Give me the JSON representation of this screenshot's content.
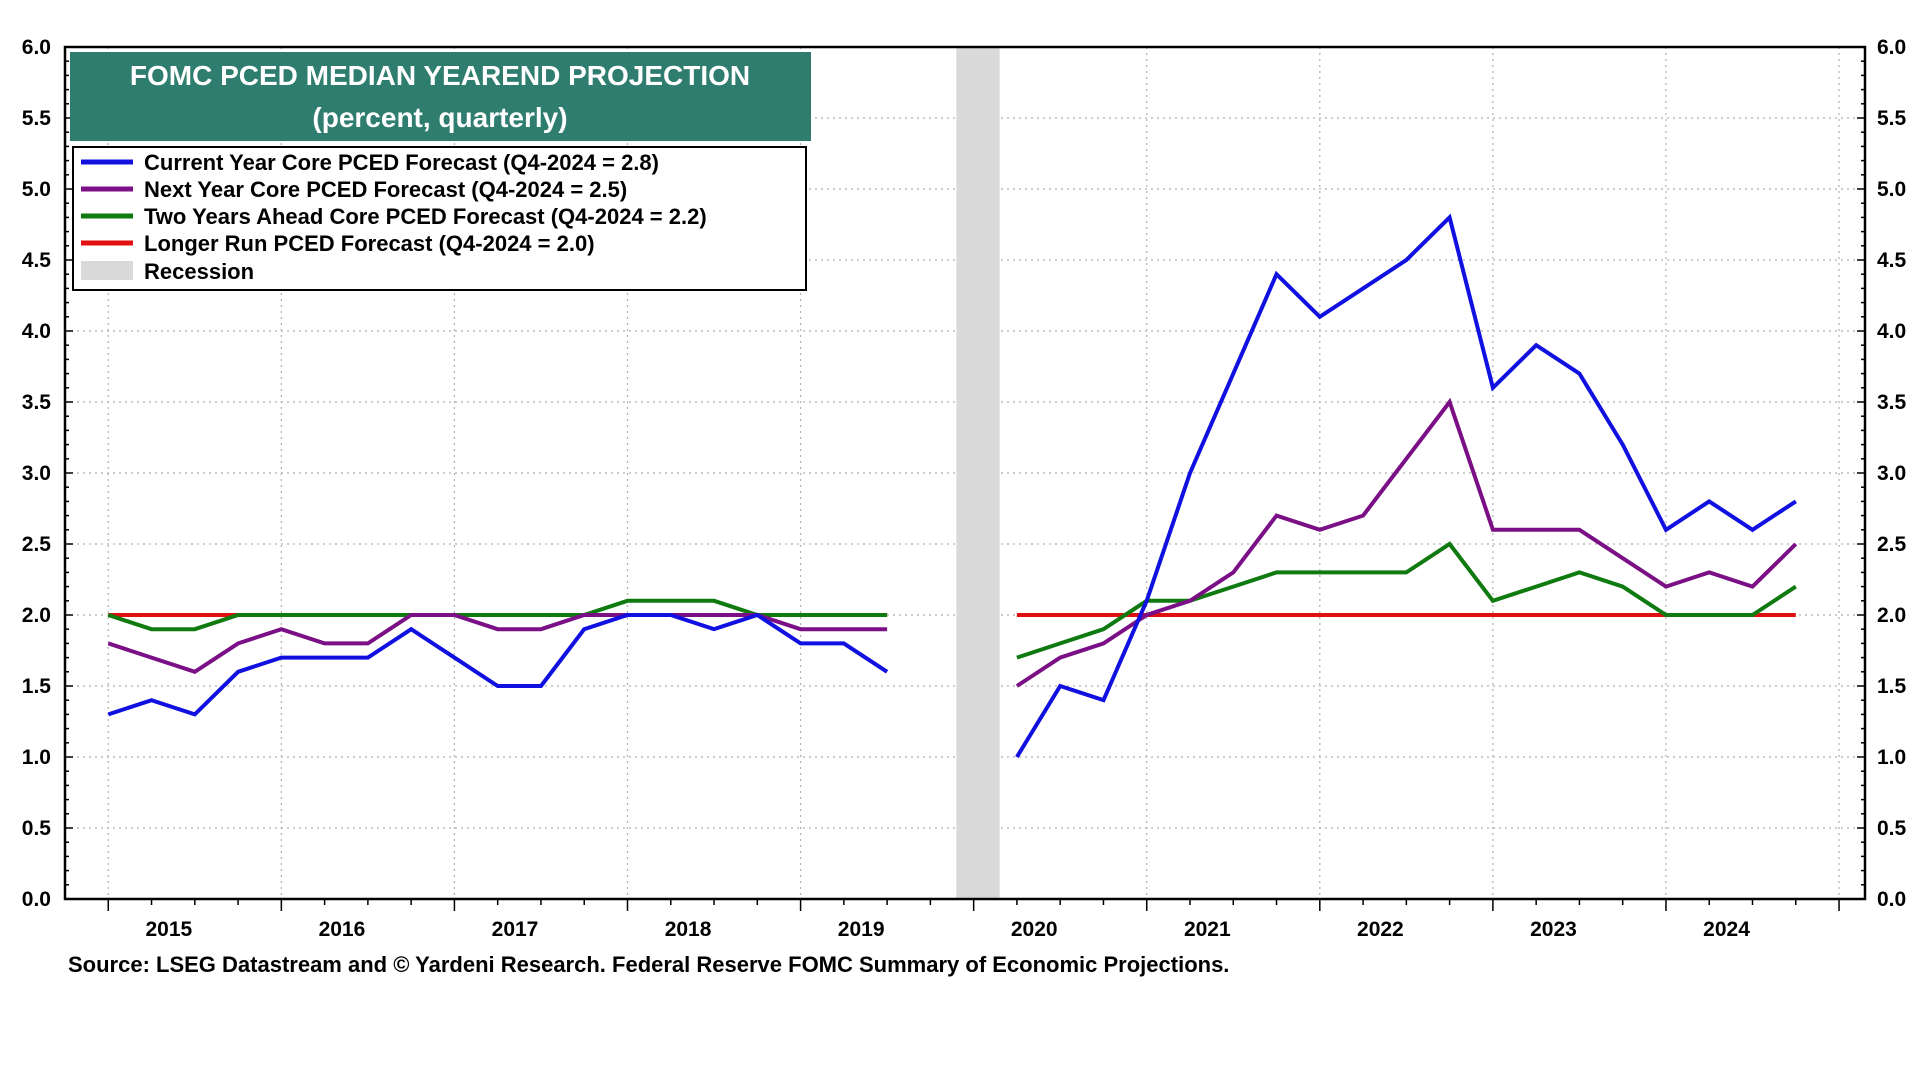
{
  "chart_data": {
    "type": "line",
    "title": "FOMC PCED MEDIAN YEAREND PROJECTION",
    "subtitle": "(percent, quarterly)",
    "ylim": [
      0,
      6
    ],
    "y_ticks": [
      "0.0",
      "0.5",
      "1.0",
      "1.5",
      "2.0",
      "2.5",
      "3.0",
      "3.5",
      "4.0",
      "4.5",
      "5.0",
      "5.5",
      "6.0"
    ],
    "year_labels": [
      "2015",
      "2016",
      "2017",
      "2018",
      "2019",
      "2020",
      "2021",
      "2022",
      "2023",
      "2024"
    ],
    "x_quarters": [
      "2015Q1",
      "2015Q2",
      "2015Q3",
      "2015Q4",
      "2016Q1",
      "2016Q2",
      "2016Q3",
      "2016Q4",
      "2017Q1",
      "2017Q2",
      "2017Q3",
      "2017Q4",
      "2018Q1",
      "2018Q2",
      "2018Q3",
      "2018Q4",
      "2019Q1",
      "2019Q2",
      "2019Q3",
      "2019Q4",
      "2020Q1",
      "2020Q2",
      "2020Q3",
      "2020Q4",
      "2021Q1",
      "2021Q2",
      "2021Q3",
      "2021Q4",
      "2022Q1",
      "2022Q2",
      "2022Q3",
      "2022Q4",
      "2023Q1",
      "2023Q2",
      "2023Q3",
      "2023Q4",
      "2024Q1",
      "2024Q2",
      "2024Q3",
      "2024Q4"
    ],
    "recession": {
      "label": "Recession",
      "start": "2020Q1",
      "end": "2020Q2"
    },
    "series": [
      {
        "name": "Current Year Core PCED Forecast (Q4-2024 = 2.8)",
        "color": "#1010e0",
        "values": [
          1.3,
          1.4,
          1.3,
          1.6,
          1.7,
          1.7,
          1.7,
          1.9,
          1.7,
          1.5,
          1.5,
          1.9,
          2.0,
          2.0,
          1.9,
          2.0,
          1.8,
          1.8,
          1.6,
          null,
          null,
          1.0,
          1.5,
          1.4,
          2.1,
          3.0,
          3.7,
          4.4,
          4.1,
          4.3,
          4.5,
          4.8,
          3.6,
          3.9,
          3.7,
          3.2,
          2.6,
          2.8,
          2.6,
          2.8
        ]
      },
      {
        "name": "Next Year Core PCED Forecast (Q4-2024 = 2.5)",
        "color": "#7a0f86",
        "values": [
          1.8,
          1.7,
          1.6,
          1.8,
          1.9,
          1.8,
          1.8,
          2.0,
          2.0,
          1.9,
          1.9,
          2.0,
          2.0,
          2.0,
          2.0,
          2.0,
          1.9,
          1.9,
          1.9,
          null,
          null,
          1.5,
          1.7,
          1.8,
          2.0,
          2.1,
          2.3,
          2.7,
          2.6,
          2.7,
          3.1,
          3.5,
          2.6,
          2.6,
          2.6,
          2.4,
          2.2,
          2.3,
          2.2,
          2.5
        ]
      },
      {
        "name": "Two Years Ahead Core PCED Forecast (Q4-2024 = 2.2)",
        "color": "#0f7a0f",
        "values": [
          2.0,
          1.9,
          1.9,
          2.0,
          2.0,
          2.0,
          2.0,
          2.0,
          2.0,
          2.0,
          2.0,
          2.0,
          2.1,
          2.1,
          2.1,
          2.0,
          2.0,
          2.0,
          2.0,
          null,
          null,
          1.7,
          1.8,
          1.9,
          2.1,
          2.1,
          2.2,
          2.3,
          2.3,
          2.3,
          2.3,
          2.5,
          2.1,
          2.2,
          2.3,
          2.2,
          2.0,
          2.0,
          2.0,
          2.2
        ]
      },
      {
        "name": "Longer Run PCED Forecast (Q4-2024 = 2.0)",
        "color": "#e01010",
        "values": [
          2.0,
          2.0,
          2.0,
          2.0,
          2.0,
          2.0,
          2.0,
          2.0,
          2.0,
          2.0,
          2.0,
          2.0,
          2.0,
          2.0,
          2.0,
          2.0,
          2.0,
          2.0,
          2.0,
          null,
          null,
          2.0,
          2.0,
          2.0,
          2.0,
          2.0,
          2.0,
          2.0,
          2.0,
          2.0,
          2.0,
          2.0,
          2.0,
          2.0,
          2.0,
          2.0,
          2.0,
          2.0,
          2.0,
          2.0
        ]
      }
    ],
    "source": "Source: LSEG Datastream and © Yardeni Research. Federal Reserve FOMC Summary of Economic Projections.",
    "colors": {
      "title_background": "#2e7d6e",
      "recession": "#d9d9d9",
      "grid": "#b0b0b0"
    }
  }
}
